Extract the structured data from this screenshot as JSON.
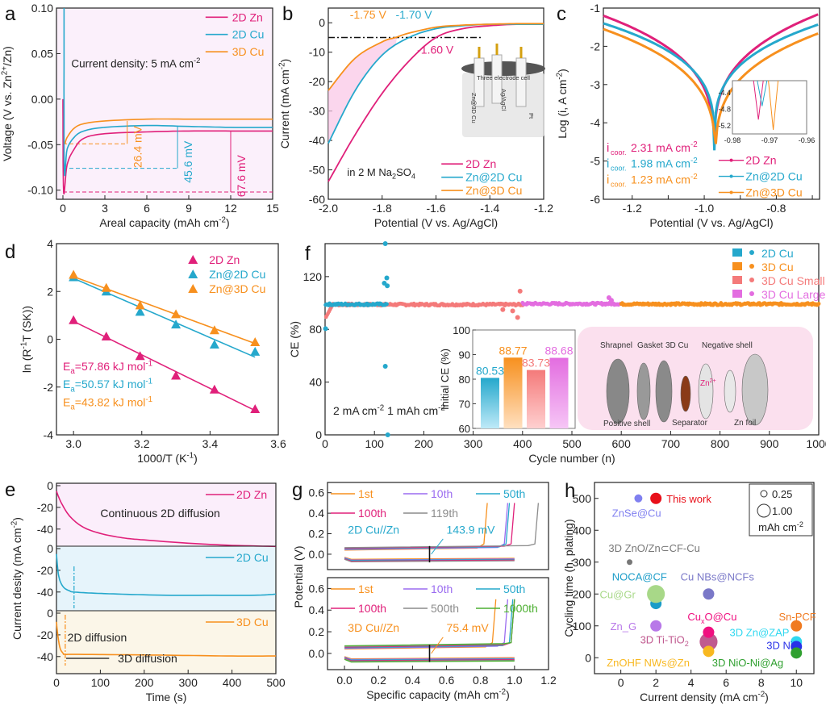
{
  "colors": {
    "zn2d": "#e0207a",
    "cu2d": "#25a8cc",
    "cu3d": "#f7901e",
    "small": "#f47a7a",
    "large": "#e36de0",
    "gray": "#8c8c8c",
    "purple": "#9b6cf0",
    "green": "#4caf30"
  },
  "chart_data": [
    {
      "panel": "a",
      "type": "line",
      "xlabel": "Areal capacity (mAh cm-2)",
      "ylabel": "Voltage (V vs. Zn2+/Zn)",
      "xlim": [
        0,
        15
      ],
      "ylim": [
        -0.11,
        0.1
      ],
      "xticks": [
        "0",
        "3",
        "6",
        "9",
        "12",
        "15"
      ],
      "yticks": [
        "0.10",
        "0.05",
        "0.00",
        "-0.05",
        "-0.10"
      ],
      "annotation": "Current density: 5 mA cm-2",
      "overpotentials": [
        "26.4 mV",
        "45.6 mV",
        "67.6 mV"
      ],
      "series": [
        {
          "name": "2D Zn",
          "color_key": "zn2d",
          "x": [
            0,
            0.05,
            0.3,
            0.8,
            1.5,
            3,
            6,
            9,
            12,
            15
          ],
          "y": [
            0.0,
            -0.102,
            -0.072,
            -0.055,
            -0.043,
            -0.038,
            -0.036,
            -0.035,
            -0.035,
            -0.035
          ]
        },
        {
          "name": "2D Cu",
          "color_key": "cu2d",
          "x": [
            0.08,
            0.1,
            0.3,
            0.8,
            1.5,
            3,
            6,
            9,
            12,
            15
          ],
          "y": [
            0.1,
            -0.076,
            -0.055,
            -0.042,
            -0.035,
            -0.031,
            -0.029,
            -0.03,
            -0.031,
            -0.031
          ]
        },
        {
          "name": "3D Cu",
          "color_key": "cu3d",
          "x": [
            0.15,
            0.3,
            0.8,
            1.5,
            3,
            6,
            9,
            12,
            15
          ],
          "y": [
            -0.049,
            -0.042,
            -0.032,
            -0.027,
            -0.024,
            -0.022,
            -0.022,
            -0.022,
            -0.022
          ]
        }
      ]
    },
    {
      "panel": "b",
      "type": "line",
      "xlabel": "Potential (V vs. Ag/AgCl)",
      "ylabel": "Current (mA cm-2)",
      "xlim": [
        -2.0,
        -1.2
      ],
      "ylim": [
        -60,
        5
      ],
      "xticks": [
        "-2.0",
        "-1.8",
        "-1.6",
        "-1.4",
        "-1.2"
      ],
      "yticks": [
        "0",
        "-10",
        "-20",
        "-30",
        "-40",
        "-50",
        "-60"
      ],
      "annotations": [
        "-1.75 V",
        "-1.70 V",
        "-1.60 V",
        "in 2 M Na2SO4"
      ],
      "inset_labels": [
        "Three electrode cell",
        "Zn@3D Cu",
        "Ag/AgCl",
        "Pt"
      ],
      "series": [
        {
          "name": "2D Zn",
          "color_key": "zn2d",
          "x": [
            -2.0,
            -1.9,
            -1.8,
            -1.7,
            -1.6,
            -1.5,
            -1.4,
            -1.3,
            -1.2
          ],
          "y": [
            -54,
            -38,
            -24,
            -13,
            -5,
            -2,
            -1,
            -0.5,
            -0.5
          ]
        },
        {
          "name": "Zn@2D Cu",
          "color_key": "cu2d",
          "x": [
            -2.0,
            -1.9,
            -1.8,
            -1.7,
            -1.6,
            -1.5,
            -1.4,
            -1.3,
            -1.2
          ],
          "y": [
            -41,
            -23,
            -11,
            -5,
            -2,
            -1,
            -0.5,
            -0.5,
            -0.5
          ]
        },
        {
          "name": "Zn@3D Cu",
          "color_key": "cu3d",
          "x": [
            -2.0,
            -1.9,
            -1.8,
            -1.75,
            -1.7,
            -1.6,
            -1.5,
            -1.4,
            -1.3,
            -1.2
          ],
          "y": [
            -23,
            -12,
            -6.5,
            -5,
            -3.5,
            -1.5,
            -0.8,
            -0.5,
            -0.3,
            -0.3
          ]
        }
      ]
    },
    {
      "panel": "c",
      "type": "line",
      "xlabel": "Potential (V vs. Ag/AgCl)",
      "ylabel": "Log (i, A cm-2)",
      "xlim": [
        -1.28,
        -0.68
      ],
      "ylim": [
        -6,
        -1
      ],
      "xticks": [
        "-1.2",
        "-1.0",
        "-0.8"
      ],
      "yticks": [
        "-1",
        "-2",
        "-3",
        "-4",
        "-5",
        "-6"
      ],
      "icorr": [
        "2.31 mA cm-2",
        "1.98 mA cm-2",
        "1.23 mA cm-2"
      ],
      "inset": {
        "xticks": [
          "-0.98",
          "-0.97",
          "-0.96"
        ],
        "yticks": [
          "-4.4",
          "-4.8",
          "-5.2"
        ]
      },
      "series": [
        {
          "name": "2D Zn",
          "color_key": "zn2d",
          "ecorr": -0.973,
          "min": -5.05,
          "left": -1.2,
          "right": -1.15
        },
        {
          "name": "Zn@2D Cu",
          "color_key": "cu2d",
          "ecorr": -0.972,
          "min": -4.72,
          "left": -1.4,
          "right": -1.42
        },
        {
          "name": "Zn@3D Cu",
          "color_key": "cu3d",
          "ecorr": -0.969,
          "min": -5.3,
          "left": -1.55,
          "right": -1.65
        }
      ]
    },
    {
      "panel": "d",
      "type": "scatter",
      "xlabel": "1000/T (K-1)",
      "ylabel": "ln (R-1T (SK))",
      "xlim": [
        2.95,
        3.6
      ],
      "ylim": [
        -4,
        4
      ],
      "xticks": [
        "3.0",
        "3.2",
        "3.4",
        "3.6"
      ],
      "yticks": [
        "4",
        "2",
        "0",
        "-2",
        "-4"
      ],
      "x": [
        3.0,
        3.096,
        3.195,
        3.3,
        3.413,
        3.532
      ],
      "series": [
        {
          "name": "2D Zn",
          "color_key": "zn2d",
          "values": [
            0.8,
            0.12,
            -0.7,
            -1.52,
            -2.1,
            -2.92
          ],
          "fit": [
            0.75,
            -2.98
          ],
          "ea": "Ea=57.86 kJ mol-1"
        },
        {
          "name": "Zn@2D Cu",
          "color_key": "cu2d",
          "values": [
            2.6,
            2.0,
            1.15,
            0.62,
            -0.22,
            -0.52
          ],
          "fit": [
            2.55,
            -0.75
          ],
          "ea": "Ea=50.57 kJ mol-1"
        },
        {
          "name": "Zn@3D Cu",
          "color_key": "cu3d",
          "values": [
            2.7,
            2.15,
            1.42,
            1.05,
            0.38,
            -0.12
          ],
          "fit": [
            2.62,
            -0.18
          ],
          "ea": "Ea=43.82 kJ mol-1"
        }
      ]
    },
    {
      "panel": "f",
      "type": "scatter",
      "xlabel": "Cycle number (n)",
      "ylabel": "CE (%)",
      "xlim": [
        0,
        1000
      ],
      "ylim": [
        0,
        145
      ],
      "xticks": [
        "0",
        "100",
        "200",
        "300",
        "400",
        "500",
        "600",
        "700",
        "800",
        "900",
        "1000"
      ],
      "yticks": [
        "0",
        "40",
        "80",
        "120"
      ],
      "annotation": "2 mA cm-2   1 mAh cm-2",
      "series": [
        {
          "name": "2D Cu",
          "color_key": "cu2d",
          "range": [
            1,
            125
          ],
          "mean": 99,
          "outliers": [
            [
              1,
              80.5
            ],
            [
              122,
              145
            ],
            [
              125,
              119
            ],
            [
              120,
              115
            ],
            [
              126,
              113
            ],
            [
              122,
              52
            ],
            [
              127,
              0
            ]
          ]
        },
        {
          "name": "3D Cu",
          "color_key": "cu3d",
          "range": [
            600,
            1000
          ],
          "mean": 99.2,
          "outliers": []
        },
        {
          "name": "3D Cu Small",
          "color_key": "small",
          "range": [
            2,
            400
          ],
          "mean": 98.8,
          "outliers": [
            [
              395,
              109
            ],
            [
              390,
              89
            ],
            [
              360,
              95
            ],
            [
              380,
              94
            ]
          ]
        },
        {
          "name": "3D Cu Large",
          "color_key": "large",
          "range": [
            400,
            600
          ],
          "mean": 99.4,
          "outliers": [
            [
              575,
              104
            ],
            [
              580,
              102
            ]
          ]
        }
      ],
      "inset_bar": {
        "ylabel": "Initial CE (%)",
        "ylim": [
          60,
          100
        ],
        "yticks": [
          "60",
          "70",
          "80",
          "90",
          "100"
        ],
        "categories": [
          "2D Cu",
          "3D Cu",
          "3D Cu Small",
          "3D Cu Large"
        ],
        "values": [
          80.53,
          88.77,
          83.73,
          88.68
        ],
        "labels": [
          "80.53",
          "88.77",
          "83.73",
          "88.68"
        ]
      },
      "inset_diagram_labels": [
        "Shrapnel",
        "Gasket",
        "3D Cu",
        "Negative shell",
        "Positive shell",
        "Separator",
        "Zn foil",
        "Zn2+"
      ]
    },
    {
      "panel": "e",
      "type": "line",
      "xlabel": "Time (s)",
      "ylabel": "Current desity (mA cm-2)",
      "xlim": [
        0,
        500
      ],
      "xticks": [
        "0",
        "100",
        "200",
        "300",
        "400",
        "500"
      ],
      "yticks": [
        "0",
        "-20",
        "-40"
      ],
      "annotations": [
        "Continuous 2D diffusion",
        "2D diffusion",
        "3D diffusion"
      ],
      "series": [
        {
          "name": "2D Zn",
          "color_key": "zn2d",
          "x": [
            0,
            10,
            30,
            60,
            100,
            150,
            200,
            300,
            400,
            500
          ],
          "y": [
            -5,
            -15,
            -28,
            -38,
            -44,
            -48,
            -50,
            -53,
            -55,
            -56
          ]
        },
        {
          "name": "2D Cu",
          "color_key": "cu2d",
          "x": [
            0,
            5,
            15,
            30,
            40,
            80,
            150,
            250,
            350,
            450,
            500
          ],
          "y": [
            -5,
            -25,
            -35,
            -39,
            -40,
            -41,
            -42,
            -43,
            -43,
            -43,
            -42
          ]
        },
        {
          "name": "3D Cu",
          "color_key": "cu3d",
          "x": [
            0,
            3,
            8,
            15,
            20,
            50,
            200,
            300,
            400,
            500
          ],
          "y": [
            -8,
            -20,
            -32,
            -37,
            -38,
            -38,
            -38.5,
            -39,
            -39.5,
            -39.5
          ]
        }
      ]
    },
    {
      "panel": "g",
      "type": "line",
      "xlabel": "Specific capacity (mAh cm-2)",
      "ylabel": "Potential (V)",
      "xlim": [
        -0.1,
        1.2
      ],
      "ylim": [
        -0.15,
        0.7
      ],
      "xticks": [
        "0.0",
        "0.2",
        "0.4",
        "0.6",
        "0.8",
        "1.0",
        "1.2"
      ],
      "yticks": [
        "0.6",
        "0.4",
        "0.2",
        "0.0"
      ],
      "top": {
        "label": "2D Cu//Zn",
        "overpotential": "143.9 mV",
        "legend": [
          "1st",
          "10th",
          "50th",
          "100th",
          "119th"
        ],
        "legend_colors": [
          "cu3d",
          "purple",
          "cu2d",
          "zn2d",
          "gray"
        ],
        "end_caps": [
          0.84,
          0.96,
          0.97,
          1.0,
          1.14
        ]
      },
      "bottom": {
        "label": "3D Cu//Zn",
        "overpotential": "75.4 mV",
        "legend": [
          "1st",
          "10th",
          "50th",
          "100th",
          "500th",
          "1000th"
        ],
        "legend_colors": [
          "cu3d",
          "purple",
          "cu2d",
          "zn2d",
          "gray",
          "green"
        ],
        "end_caps": [
          0.89,
          0.96,
          0.99,
          1.0,
          1.0,
          1.0
        ]
      }
    },
    {
      "panel": "h",
      "type": "scatter",
      "xlabel": "Current density (mA cm-2)",
      "ylabel": "Cycling time (h, plating)",
      "xlim": [
        -1.5,
        11
      ],
      "ylim": [
        -50,
        550
      ],
      "xticks": [
        "0",
        "2",
        "4",
        "6",
        "8",
        "10"
      ],
      "yticks": [
        "0",
        "100",
        "200",
        "300",
        "400",
        "500"
      ],
      "size_legend": [
        "0.25",
        "1.00",
        "mAh cm-2"
      ],
      "points": [
        {
          "name": "ZnSe@Cu",
          "x": 1,
          "y": 500,
          "cap": 0.5,
          "color": "#8080f0"
        },
        {
          "name": "This work",
          "x": 2,
          "y": 500,
          "cap": 1.0,
          "color": "#e8101a"
        },
        {
          "name": "3D ZnO/Zn⊂CF-Cu",
          "x": 0.5,
          "y": 300,
          "cap": 0.25,
          "color": "#777777"
        },
        {
          "name": "NOCA@CF",
          "x": 2,
          "y": 170,
          "cap": 1.0,
          "color": "#1a9cc8"
        },
        {
          "name": "Cu@Gr",
          "x": 2,
          "y": 200,
          "cap": 2.5,
          "color": "#a8d888"
        },
        {
          "name": "Cu NBs@NCFs",
          "x": 5,
          "y": 200,
          "cap": 1.0,
          "color": "#7a78c8"
        },
        {
          "name": "Zn_G",
          "x": 2,
          "y": 100,
          "cap": 1.0,
          "color": "#b878e8"
        },
        {
          "name": "3D Ti-TiO2",
          "x": 5,
          "y": 50,
          "cap": 2.5,
          "color": "#c05a90"
        },
        {
          "name": "CuxO@Cu",
          "x": 5,
          "y": 80,
          "cap": 1.0,
          "color": "#f01080"
        },
        {
          "name": "ZnOHF NWs@Zn",
          "x": 5,
          "y": 20,
          "cap": 1.0,
          "color": "#f8b820"
        },
        {
          "name": "Sn-PCF",
          "x": 10,
          "y": 100,
          "cap": 1.0,
          "color": "#f07a20"
        },
        {
          "name": "3D Zn@ZAP",
          "x": 10,
          "y": 50,
          "cap": 1.0,
          "color": "#30d8f0"
        },
        {
          "name": "3D Ni",
          "x": 10,
          "y": 35,
          "cap": 1.0,
          "color": "#2830e8"
        },
        {
          "name": "3D NiO-Ni@Ag",
          "x": 10,
          "y": 15,
          "cap": 1.0,
          "color": "#30a030"
        }
      ]
    }
  ]
}
